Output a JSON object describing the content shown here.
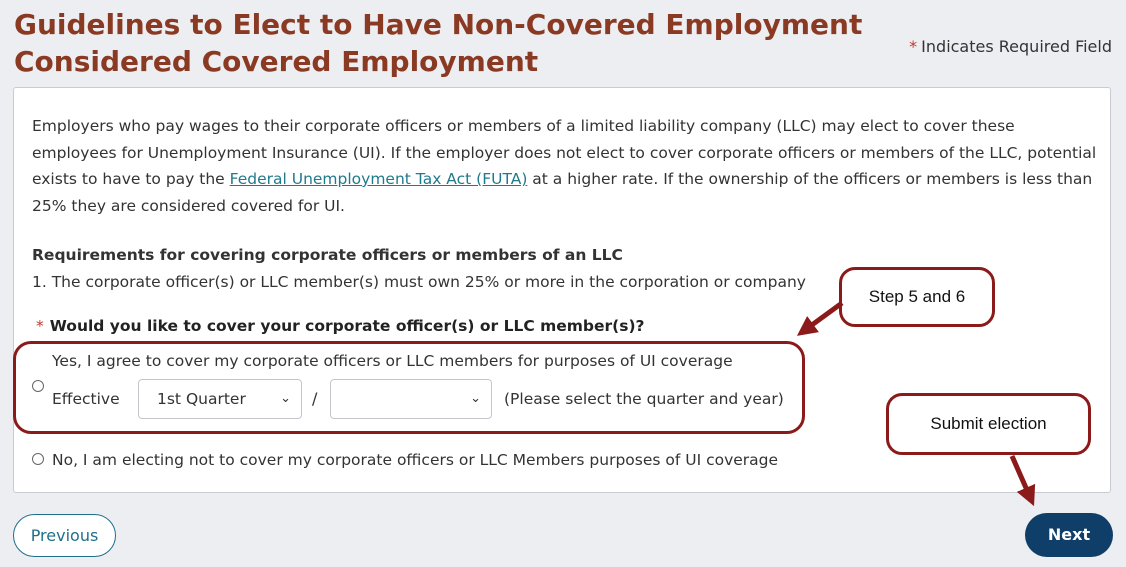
{
  "page": {
    "title": "Guidelines to Elect to Have Non-Covered Employment Considered Covered Employment",
    "required_note_star": "*",
    "required_note": "Indicates Required Field"
  },
  "intro": {
    "text_before_link": "Employers who pay wages to their corporate officers or members of a limited liability company (LLC) may elect to cover these employees for Unemployment Insurance (UI). If the employer does not elect to cover corporate officers or members of the LLC, potential exists to have to pay the ",
    "link_text": "Federal Unemployment Tax Act (FUTA)",
    "text_after_link": " at a higher rate. If the ownership of the officers or members is less than 25% they are considered covered for UI."
  },
  "requirements": {
    "heading": "Requirements for covering corporate officers or members of an LLC",
    "item_1": "1. The corporate officer(s) or LLC member(s) must own 25% or more in the corporation or company"
  },
  "question": {
    "star": "*",
    "label": "Would you like to cover your corporate officer(s) or LLC member(s)?"
  },
  "option_yes": {
    "label": "Yes, I agree to cover my corporate officers or LLC members for purposes of UI coverage",
    "effective_label": "Effective",
    "quarter_value": "1st Quarter",
    "separator": "/",
    "year_value": "",
    "hint": "(Please select the quarter and year)"
  },
  "option_no": {
    "label": "No, I am electing not to cover my corporate officers or LLC Members purposes of UI coverage"
  },
  "annotations": {
    "step_callout": "Step 5 and 6",
    "submit_callout": "Submit election",
    "color": "#8b1a1a"
  },
  "buttons": {
    "previous": "Previous",
    "next": "Next"
  },
  "colors": {
    "title": "#8a3a22",
    "link": "#1f7a8c",
    "next_bg": "#0f3e68"
  }
}
